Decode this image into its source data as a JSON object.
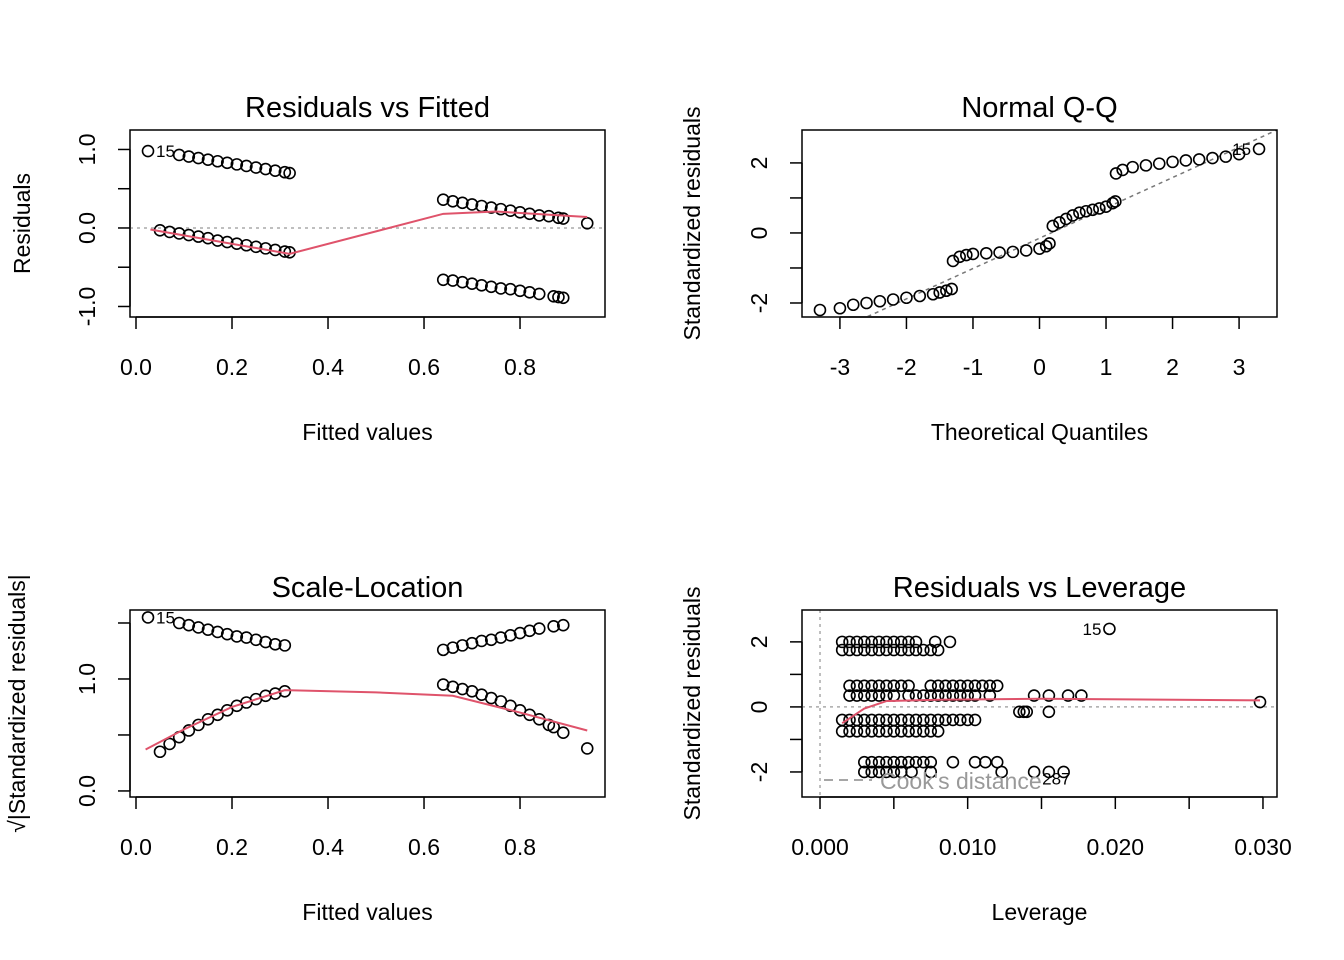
{
  "chart_data": [
    {
      "type": "scatter",
      "title": "Residuals vs Fitted",
      "xlabel": "Fitted values",
      "ylabel": "Residuals",
      "xlim": [
        -0.0125,
        0.977
      ],
      "ylim": [
        -1.134,
        1.248
      ],
      "xticks": [
        0,
        0.2,
        0.4,
        0.6,
        0.8
      ],
      "xtick_labels": [
        "0.0",
        "0.2",
        "0.4",
        "0.6",
        "0.8"
      ],
      "yticks": [
        -1,
        -0.5,
        0,
        0.5,
        1
      ],
      "ytick_labels": [
        "-1.0",
        "",
        "0.0",
        "",
        "1.0"
      ],
      "reference_line": {
        "axis": "y",
        "value": 0,
        "style": "dotted",
        "color": "#aaaaaa"
      },
      "points": [
        [
          0.025,
          0.98
        ],
        [
          0.09,
          0.93
        ],
        [
          0.11,
          0.91
        ],
        [
          0.13,
          0.89
        ],
        [
          0.15,
          0.87
        ],
        [
          0.17,
          0.85
        ],
        [
          0.19,
          0.83
        ],
        [
          0.21,
          0.81
        ],
        [
          0.23,
          0.79
        ],
        [
          0.25,
          0.77
        ],
        [
          0.27,
          0.75
        ],
        [
          0.29,
          0.73
        ],
        [
          0.31,
          0.71
        ],
        [
          0.32,
          0.7
        ],
        [
          0.05,
          -0.03
        ],
        [
          0.07,
          -0.05
        ],
        [
          0.09,
          -0.07
        ],
        [
          0.11,
          -0.09
        ],
        [
          0.13,
          -0.11
        ],
        [
          0.15,
          -0.13
        ],
        [
          0.17,
          -0.16
        ],
        [
          0.19,
          -0.18
        ],
        [
          0.21,
          -0.2
        ],
        [
          0.23,
          -0.22
        ],
        [
          0.25,
          -0.24
        ],
        [
          0.27,
          -0.26
        ],
        [
          0.29,
          -0.28
        ],
        [
          0.31,
          -0.3
        ],
        [
          0.32,
          -0.31
        ],
        [
          0.64,
          0.36
        ],
        [
          0.66,
          0.34
        ],
        [
          0.68,
          0.32
        ],
        [
          0.7,
          0.3
        ],
        [
          0.72,
          0.28
        ],
        [
          0.74,
          0.26
        ],
        [
          0.76,
          0.24
        ],
        [
          0.78,
          0.22
        ],
        [
          0.8,
          0.2
        ],
        [
          0.82,
          0.18
        ],
        [
          0.84,
          0.16
        ],
        [
          0.86,
          0.15
        ],
        [
          0.88,
          0.13
        ],
        [
          0.89,
          0.12
        ],
        [
          0.94,
          0.06
        ],
        [
          0.64,
          -0.66
        ],
        [
          0.66,
          -0.67
        ],
        [
          0.68,
          -0.69
        ],
        [
          0.7,
          -0.71
        ],
        [
          0.72,
          -0.73
        ],
        [
          0.74,
          -0.75
        ],
        [
          0.76,
          -0.77
        ],
        [
          0.78,
          -0.78
        ],
        [
          0.8,
          -0.8
        ],
        [
          0.82,
          -0.82
        ],
        [
          0.84,
          -0.84
        ],
        [
          0.87,
          -0.87
        ],
        [
          0.88,
          -0.88
        ],
        [
          0.89,
          -0.89
        ]
      ],
      "smooth": {
        "color": "#df536b",
        "points": [
          [
            0.03,
            -0.02
          ],
          [
            0.32,
            -0.33
          ],
          [
            0.64,
            0.18
          ],
          [
            0.75,
            0.21
          ],
          [
            0.94,
            0.14
          ]
        ]
      },
      "point_labels": [
        {
          "text": "15",
          "x": 0.025,
          "y": 0.98
        }
      ]
    },
    {
      "type": "scatter",
      "title": "Normal Q-Q",
      "xlabel": "Theoretical Quantiles",
      "ylabel": "Standardized residuals",
      "xlim": [
        -3.57,
        3.57
      ],
      "ylim": [
        -2.4,
        2.94
      ],
      "xticks": [
        -3,
        -2,
        -1,
        0,
        1,
        2,
        3
      ],
      "xtick_labels": [
        "-3",
        "-2",
        "-1",
        "0",
        "1",
        "2",
        "3"
      ],
      "yticks": [
        -2,
        -1,
        0,
        1,
        2
      ],
      "ytick_labels": [
        "-2",
        "",
        "0",
        "",
        "2"
      ],
      "reference_line": {
        "axis": "qq",
        "slope": 0.866,
        "intercept": -0.15,
        "style": "dashed",
        "color": "#777777"
      },
      "points": [
        [
          -3.3,
          -2.2
        ],
        [
          -3.0,
          -2.15
        ],
        [
          -2.8,
          -2.05
        ],
        [
          -2.6,
          -2.0
        ],
        [
          -2.4,
          -1.95
        ],
        [
          -2.2,
          -1.9
        ],
        [
          -2.0,
          -1.85
        ],
        [
          -1.8,
          -1.8
        ],
        [
          -1.6,
          -1.75
        ],
        [
          -1.5,
          -1.7
        ],
        [
          -1.4,
          -1.65
        ],
        [
          -1.32,
          -1.6
        ],
        [
          -1.3,
          -0.8
        ],
        [
          -1.2,
          -0.68
        ],
        [
          -1.1,
          -0.63
        ],
        [
          -1.0,
          -0.6
        ],
        [
          -0.8,
          -0.58
        ],
        [
          -0.6,
          -0.56
        ],
        [
          -0.4,
          -0.54
        ],
        [
          -0.2,
          -0.5
        ],
        [
          0,
          -0.45
        ],
        [
          0.1,
          -0.38
        ],
        [
          0.15,
          -0.3
        ],
        [
          0.2,
          0.2
        ],
        [
          0.3,
          0.3
        ],
        [
          0.4,
          0.4
        ],
        [
          0.5,
          0.5
        ],
        [
          0.6,
          0.58
        ],
        [
          0.7,
          0.62
        ],
        [
          0.8,
          0.66
        ],
        [
          0.9,
          0.7
        ],
        [
          1.0,
          0.75
        ],
        [
          1.1,
          0.85
        ],
        [
          1.14,
          0.9
        ],
        [
          1.15,
          1.7
        ],
        [
          1.25,
          1.8
        ],
        [
          1.4,
          1.88
        ],
        [
          1.6,
          1.93
        ],
        [
          1.8,
          1.98
        ],
        [
          2.0,
          2.03
        ],
        [
          2.2,
          2.07
        ],
        [
          2.4,
          2.1
        ],
        [
          2.6,
          2.14
        ],
        [
          2.8,
          2.18
        ],
        [
          3.0,
          2.25
        ],
        [
          3.3,
          2.4
        ]
      ],
      "point_labels": [
        {
          "text": "15",
          "x": 3.3,
          "y": 2.4
        }
      ]
    },
    {
      "type": "scatter",
      "title": "Scale-Location",
      "xlabel": "Fitted values",
      "ylabel": "√|Standardized residuals|",
      "xlim": [
        -0.0125,
        0.977
      ],
      "ylim": [
        -0.054,
        1.616
      ],
      "xticks": [
        0,
        0.2,
        0.4,
        0.6,
        0.8
      ],
      "xtick_labels": [
        "0.0",
        "0.2",
        "0.4",
        "0.6",
        "0.8"
      ],
      "yticks": [
        0,
        0.5,
        1.0,
        1.5
      ],
      "ytick_labels": [
        "0.0",
        "",
        "1.0",
        ""
      ],
      "points": [
        [
          0.025,
          1.55
        ],
        [
          0.09,
          1.5
        ],
        [
          0.11,
          1.48
        ],
        [
          0.13,
          1.46
        ],
        [
          0.15,
          1.44
        ],
        [
          0.17,
          1.42
        ],
        [
          0.19,
          1.4
        ],
        [
          0.21,
          1.38
        ],
        [
          0.23,
          1.37
        ],
        [
          0.25,
          1.35
        ],
        [
          0.27,
          1.33
        ],
        [
          0.29,
          1.31
        ],
        [
          0.31,
          1.3
        ],
        [
          0.05,
          0.35
        ],
        [
          0.07,
          0.42
        ],
        [
          0.09,
          0.48
        ],
        [
          0.11,
          0.54
        ],
        [
          0.13,
          0.59
        ],
        [
          0.15,
          0.64
        ],
        [
          0.17,
          0.68
        ],
        [
          0.19,
          0.72
        ],
        [
          0.21,
          0.76
        ],
        [
          0.23,
          0.79
        ],
        [
          0.25,
          0.82
        ],
        [
          0.27,
          0.85
        ],
        [
          0.29,
          0.87
        ],
        [
          0.31,
          0.89
        ],
        [
          0.64,
          1.26
        ],
        [
          0.66,
          1.28
        ],
        [
          0.68,
          1.3
        ],
        [
          0.7,
          1.32
        ],
        [
          0.72,
          1.34
        ],
        [
          0.74,
          1.35
        ],
        [
          0.76,
          1.37
        ],
        [
          0.78,
          1.39
        ],
        [
          0.8,
          1.41
        ],
        [
          0.82,
          1.43
        ],
        [
          0.84,
          1.45
        ],
        [
          0.87,
          1.47
        ],
        [
          0.89,
          1.48
        ],
        [
          0.64,
          0.95
        ],
        [
          0.66,
          0.93
        ],
        [
          0.68,
          0.91
        ],
        [
          0.7,
          0.89
        ],
        [
          0.72,
          0.86
        ],
        [
          0.74,
          0.83
        ],
        [
          0.76,
          0.8
        ],
        [
          0.78,
          0.76
        ],
        [
          0.8,
          0.72
        ],
        [
          0.82,
          0.68
        ],
        [
          0.84,
          0.64
        ],
        [
          0.86,
          0.59
        ],
        [
          0.87,
          0.57
        ],
        [
          0.89,
          0.52
        ],
        [
          0.94,
          0.38
        ]
      ],
      "smooth": {
        "color": "#df536b",
        "points": [
          [
            0.02,
            0.37
          ],
          [
            0.1,
            0.55
          ],
          [
            0.2,
            0.75
          ],
          [
            0.31,
            0.9
          ],
          [
            0.5,
            0.88
          ],
          [
            0.66,
            0.85
          ],
          [
            0.8,
            0.7
          ],
          [
            0.94,
            0.54
          ]
        ]
      },
      "point_labels": [
        {
          "text": "15",
          "x": 0.025,
          "y": 1.55
        }
      ]
    },
    {
      "type": "scatter",
      "title": "Residuals vs Leverage",
      "xlabel": "Leverage",
      "ylabel": "Standardized residuals",
      "xlim": [
        -0.00122,
        0.03095
      ],
      "ylim": [
        -2.77,
        2.98
      ],
      "xticks": [
        0,
        0.005,
        0.01,
        0.015,
        0.02,
        0.025,
        0.03
      ],
      "xtick_labels": [
        "0.000",
        "",
        "0.010",
        "",
        "0.020",
        "",
        "0.030"
      ],
      "yticks": [
        -2,
        -1,
        0,
        1,
        2
      ],
      "ytick_labels": [
        "-2",
        "",
        "0",
        "",
        "2"
      ],
      "reference_lines": [
        {
          "axis": "x",
          "value": 0
        },
        {
          "axis": "y",
          "value": 0
        }
      ],
      "rows": [
        {
          "y": 2.0,
          "x": [
            0.0015,
            0.002,
            0.0025,
            0.003,
            0.0035,
            0.004,
            0.0045,
            0.005,
            0.0055,
            0.006,
            0.0065,
            0.0078,
            0.0088
          ]
        },
        {
          "y": 1.75,
          "x": [
            0.0015,
            0.002,
            0.0025,
            0.003,
            0.0035,
            0.004,
            0.0045,
            0.005,
            0.0055,
            0.006,
            0.0065,
            0.007,
            0.0075,
            0.008
          ]
        },
        {
          "y": 0.65,
          "x": [
            0.002,
            0.0025,
            0.003,
            0.0035,
            0.004,
            0.0045,
            0.005,
            0.0055,
            0.006,
            0.0075,
            0.008,
            0.0085,
            0.009,
            0.0095,
            0.01,
            0.0105,
            0.011,
            0.0115,
            0.012
          ]
        },
        {
          "y": 0.35,
          "x": [
            0.002,
            0.0025,
            0.003,
            0.0035,
            0.004,
            0.0045,
            0.005,
            0.006,
            0.0065,
            0.007,
            0.0075,
            0.008,
            0.0085,
            0.009,
            0.0095,
            0.01,
            0.0105,
            0.0115,
            0.0145,
            0.0155,
            0.0168,
            0.0177
          ]
        },
        {
          "y": -0.15,
          "x": [
            0.0135,
            0.0138,
            0.014,
            0.0155
          ]
        },
        {
          "y": -0.4,
          "x": [
            0.0015,
            0.002,
            0.0025,
            0.003,
            0.0035,
            0.004,
            0.0045,
            0.005,
            0.0055,
            0.006,
            0.0065,
            0.007,
            0.0075,
            0.008,
            0.0085,
            0.009,
            0.0095,
            0.01,
            0.0105
          ]
        },
        {
          "y": -0.75,
          "x": [
            0.0015,
            0.002,
            0.0025,
            0.003,
            0.0035,
            0.004,
            0.0045,
            0.005,
            0.0055,
            0.006,
            0.0065,
            0.007,
            0.0075,
            0.008
          ]
        },
        {
          "y": -1.7,
          "x": [
            0.003,
            0.0035,
            0.004,
            0.0045,
            0.005,
            0.0055,
            0.006,
            0.0065,
            0.007,
            0.0075,
            0.009,
            0.0105,
            0.0112,
            0.012
          ]
        },
        {
          "y": -2.0,
          "x": [
            0.003,
            0.0035,
            0.004,
            0.0045,
            0.005,
            0.0055,
            0.0062,
            0.0075,
            0.0123,
            0.0145,
            0.0155,
            0.0165
          ]
        }
      ],
      "extra_points": [
        [
          0.0196,
          2.4
        ],
        [
          0.0298,
          0.15
        ]
      ],
      "smooth": {
        "color": "#df536b",
        "points": [
          [
            0.0015,
            -0.5
          ],
          [
            0.003,
            -0.05
          ],
          [
            0.0045,
            0.18
          ],
          [
            0.008,
            0.22
          ],
          [
            0.015,
            0.25
          ],
          [
            0.0298,
            0.2
          ]
        ]
      },
      "point_labels": [
        {
          "text": "15",
          "x": 0.0196,
          "y": 2.4
        },
        {
          "text": "287",
          "x": 0.0145,
          "y": -2.2
        }
      ],
      "legend": {
        "text": "Cook's distance",
        "position": "bottom-left",
        "color": "#999999"
      }
    }
  ]
}
